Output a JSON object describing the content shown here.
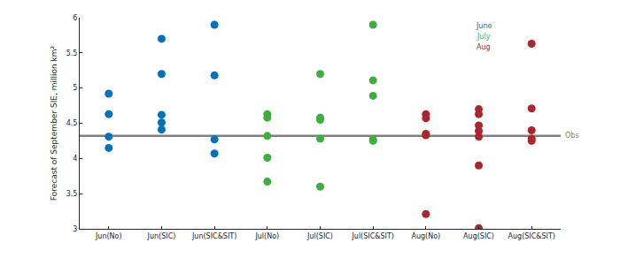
{
  "chart_data": {
    "type": "scatter",
    "marker": "circle",
    "y_label": "Forecast of September SIE, million km²",
    "categories": [
      "Jun(No)",
      "Jun(SIC)",
      "Jun(SIC&SIT)",
      "Jul(No)",
      "Jul(SIC)",
      "Jul(SIC&SIT)",
      "Aug(No)",
      "Aug(SIC)",
      "Aug(SIC&SIT)"
    ],
    "ylim": [
      3,
      6
    ],
    "yticks": [
      3,
      3.5,
      4,
      4.5,
      5,
      5.5,
      6
    ],
    "grid": false,
    "legend": "upper right",
    "obs": {
      "label": "Obs",
      "value": 4.32,
      "color": "#808080"
    },
    "series": [
      {
        "name": "June",
        "color": "#0072BD",
        "x": [
          "Jun(No)",
          "Jun(No)",
          "Jun(No)",
          "Jun(No)",
          "Jun(SIC)",
          "Jun(SIC)",
          "Jun(SIC)",
          "Jun(SIC)",
          "Jun(SIC)",
          "Jun(SIC&SIT)",
          "Jun(SIC&SIT)",
          "Jun(SIC&SIT)",
          "Jun(SIC&SIT)"
        ],
        "values": [
          4.92,
          4.63,
          4.31,
          4.15,
          5.7,
          5.2,
          4.62,
          4.51,
          4.41,
          5.9,
          5.18,
          4.27,
          4.07
        ]
      },
      {
        "name": "July",
        "color": "#3CB03C",
        "x": [
          "Jul(No)",
          "Jul(No)",
          "Jul(No)",
          "Jul(No)",
          "Jul(No)",
          "Jul(SIC)",
          "Jul(SIC)",
          "Jul(SIC)",
          "Jul(SIC)",
          "Jul(SIC)",
          "Jul(SIC&SIT)",
          "Jul(SIC&SIT)",
          "Jul(SIC&SIT)",
          "Jul(SIC&SIT)",
          "Jul(SIC&SIT)"
        ],
        "values": [
          4.63,
          4.58,
          4.32,
          4.01,
          3.67,
          5.2,
          4.58,
          4.55,
          4.28,
          3.6,
          5.9,
          5.11,
          4.89,
          4.27,
          4.25
        ]
      },
      {
        "name": "Aug",
        "color": "#A8282E",
        "x": [
          "Aug(No)",
          "Aug(No)",
          "Aug(No)",
          "Aug(No)",
          "Aug(No)",
          "Aug(SIC)",
          "Aug(SIC)",
          "Aug(SIC)",
          "Aug(SIC)",
          "Aug(SIC)",
          "Aug(SIC)",
          "Aug(SIC)",
          "Aug(SIC&SIT)",
          "Aug(SIC&SIT)",
          "Aug(SIC&SIT)",
          "Aug(SIC&SIT)",
          "Aug(SIC&SIT)"
        ],
        "values": [
          4.63,
          4.57,
          4.35,
          4.33,
          3.21,
          4.7,
          4.63,
          4.47,
          4.39,
          4.31,
          3.9,
          3.01,
          5.63,
          4.71,
          4.4,
          4.28,
          4.25
        ]
      }
    ]
  }
}
